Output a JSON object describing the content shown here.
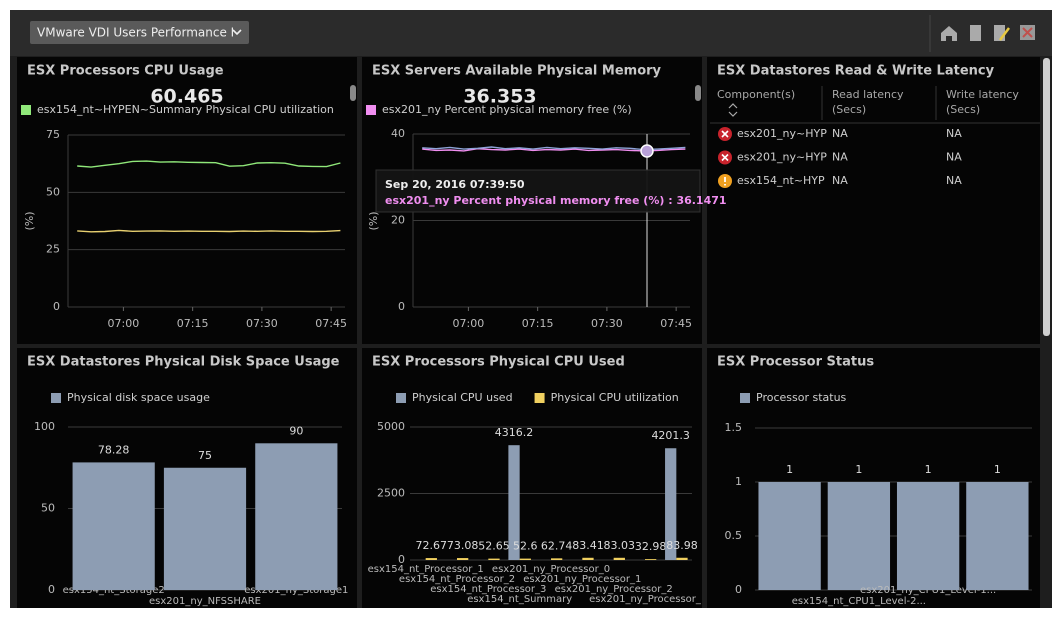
{
  "toolbar": {
    "dashboard": "VMware VDI Users Performance I"
  },
  "chart_data": [
    {
      "type": "line",
      "title": "ESX Processors CPU Usage",
      "current_value": 60.465,
      "ylabel": "(%)",
      "x": [
        "06:50",
        "06:53",
        "06:56",
        "06:59",
        "07:02",
        "07:05",
        "07:08",
        "07:11",
        "07:14",
        "07:17",
        "07:20",
        "07:23",
        "07:26",
        "07:29",
        "07:32",
        "07:35",
        "07:38",
        "07:41",
        "07:44",
        "07:47"
      ],
      "xlim": [
        "06:48",
        "07:48"
      ],
      "xticks": [
        "07:00",
        "07:15",
        "07:30",
        "07:45"
      ],
      "ylim": [
        0,
        75
      ],
      "yticks": [
        0,
        25,
        50,
        75
      ],
      "grid": true,
      "series": [
        {
          "name": "esx154_nt~HYPEN~Summary Physical CPU utilization",
          "color": "#90e87a",
          "values": [
            61.5,
            61.0,
            61.8,
            62.5,
            63.5,
            63.6,
            63.2,
            63.3,
            63.1,
            63.0,
            62.9,
            61.4,
            61.6,
            62.8,
            62.9,
            62.7,
            61.5,
            61.3,
            61.2,
            62.8
          ]
        },
        {
          "color": "#e8d070",
          "values": [
            33.2,
            32.8,
            32.9,
            33.4,
            33.0,
            33.1,
            33.2,
            33.0,
            33.1,
            33.0,
            33.0,
            32.9,
            33.1,
            33.0,
            33.2,
            33.0,
            33.0,
            32.9,
            33.0,
            33.3
          ]
        }
      ]
    },
    {
      "type": "line",
      "title": "ESX Servers Available Physical Memory",
      "current_value": 36.353,
      "ylabel": "(%)",
      "x": [
        "06:50",
        "06:53",
        "06:56",
        "06:59",
        "07:02",
        "07:05",
        "07:08",
        "07:11",
        "07:14",
        "07:17",
        "07:20",
        "07:23",
        "07:26",
        "07:29",
        "07:32",
        "07:35",
        "07:38",
        "07:41",
        "07:44",
        "07:47"
      ],
      "xlim": [
        "06:48",
        "07:48"
      ],
      "xticks": [
        "07:00",
        "07:15",
        "07:30",
        "07:45"
      ],
      "ylim": [
        0,
        40
      ],
      "yticks": [
        0,
        20,
        40
      ],
      "grid": true,
      "series": [
        {
          "name": "esx201_ny Percent physical memory free (%)",
          "color": "#f08ef0",
          "values": [
            36.5,
            36.2,
            36.3,
            36.1,
            36.6,
            36.4,
            36.3,
            36.5,
            36.2,
            36.4,
            36.3,
            36.5,
            36.2,
            36.3,
            36.4,
            36.2,
            36.1,
            36.2,
            36.4,
            36.5
          ]
        },
        {
          "color": "#8ea4d8",
          "values": [
            36.8,
            36.6,
            36.9,
            36.5,
            36.7,
            37.0,
            36.6,
            36.8,
            36.5,
            36.9,
            36.6,
            36.8,
            36.7,
            36.5,
            36.8,
            36.7,
            36.4,
            36.5,
            36.7,
            36.9
          ]
        }
      ],
      "tooltip": {
        "title": "Sep 20, 2016 07:39:50",
        "text": "esx201_ny Percent physical memory free (%) : 36.1471"
      }
    },
    {
      "type": "bar",
      "title": "ESX Datastores Physical Disk Space Usage",
      "categories": [
        "esx154_nt_Storage2",
        "esx201_ny_NFSSHARE",
        "esx201_ny_Storage1"
      ],
      "ylim": [
        0,
        100
      ],
      "yticks": [
        0,
        50,
        100
      ],
      "grid": true,
      "series": [
        {
          "name": "Physical disk space usage",
          "color": "#8d9db3",
          "values": [
            78.28,
            75,
            90
          ]
        }
      ]
    },
    {
      "type": "bar",
      "title": "ESX Processors Physical CPU Used",
      "categories": [
        "esx154_nt_Processor_1",
        "esx154_nt_Processor_2",
        "esx154_nt_Processor_3",
        "esx154_nt_Summary",
        "esx201_ny_Processor_0",
        "esx201_ny_Processor_1",
        "esx201_ny_Processor_2",
        "esx201_ny_Processor_",
        null
      ],
      "ylim": [
        0,
        5000
      ],
      "yticks": [
        0,
        2500,
        5000
      ],
      "grid": true,
      "series": [
        {
          "name": "Physical CPU used",
          "color": "#8d9db3",
          "values": [
            null,
            null,
            null,
            4316.2,
            null,
            null,
            null,
            null,
            4201.3
          ]
        },
        {
          "name": "Physical CPU utilization",
          "color": "#f0d060",
          "values": [
            72.67,
            73.08,
            52.65,
            52.6,
            62.74,
            83.41,
            83.03,
            32.98,
            83.98
          ]
        }
      ]
    },
    {
      "type": "bar",
      "title": "ESX Processor Status",
      "categories": [
        null,
        "esx154_nt_CPU1_Level-2...",
        "esx201_ny_CPU1_Level-1...",
        null
      ],
      "ylim": [
        0,
        1.5
      ],
      "yticks": [
        0,
        0.5,
        1,
        1.5
      ],
      "grid": true,
      "series": [
        {
          "name": "Processor status",
          "color": "#8d9db3",
          "values": [
            1,
            1,
            1,
            1
          ]
        }
      ]
    }
  ],
  "table": {
    "title": "ESX Datastores Read & Write Latency",
    "columns": [
      "Component(s)",
      "Read latency\n(Secs)",
      "Write latency\n(Secs)"
    ],
    "rows": [
      {
        "status": "critical",
        "cells": [
          "esx201_ny~HYP",
          "NA",
          "NA"
        ]
      },
      {
        "status": "critical",
        "cells": [
          "esx201_ny~HYP",
          "NA",
          "NA"
        ]
      },
      {
        "status": "warning",
        "cells": [
          "esx154_nt~HYP",
          "NA",
          "NA"
        ]
      }
    ]
  }
}
